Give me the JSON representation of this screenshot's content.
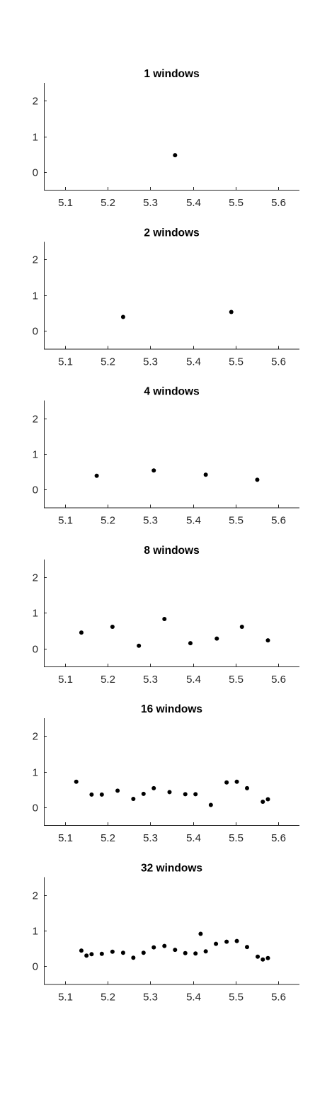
{
  "chart_data": [
    {
      "type": "scatter",
      "title": "1 windows",
      "xlim": [
        5.05,
        5.65
      ],
      "ylim": [
        -0.5,
        2.5
      ],
      "xticks": [
        "5.1",
        "5.2",
        "5.3",
        "5.4",
        "5.5",
        "5.6"
      ],
      "yticks": [
        "0",
        "1",
        "2"
      ],
      "x": [
        5.358
      ],
      "y": [
        0.47
      ]
    },
    {
      "type": "scatter",
      "title": "2 windows",
      "xlim": [
        5.05,
        5.65
      ],
      "ylim": [
        -0.5,
        2.5
      ],
      "xticks": [
        "5.1",
        "5.2",
        "5.3",
        "5.4",
        "5.5",
        "5.6"
      ],
      "yticks": [
        "0",
        "1",
        "2"
      ],
      "x": [
        5.236,
        5.49
      ],
      "y": [
        0.39,
        0.53
      ]
    },
    {
      "type": "scatter",
      "title": "4 windows",
      "xlim": [
        5.05,
        5.65
      ],
      "ylim": [
        -0.5,
        2.5
      ],
      "xticks": [
        "5.1",
        "5.2",
        "5.3",
        "5.4",
        "5.5",
        "5.6"
      ],
      "yticks": [
        "0",
        "1",
        "2"
      ],
      "x": [
        5.174,
        5.308,
        5.43,
        5.551
      ],
      "y": [
        0.39,
        0.54,
        0.42,
        0.28
      ]
    },
    {
      "type": "scatter",
      "title": "8 windows",
      "xlim": [
        5.05,
        5.65
      ],
      "ylim": [
        -0.5,
        2.5
      ],
      "xticks": [
        "5.1",
        "5.2",
        "5.3",
        "5.4",
        "5.5",
        "5.6"
      ],
      "yticks": [
        "0",
        "1",
        "2"
      ],
      "x": [
        5.138,
        5.211,
        5.273,
        5.333,
        5.394,
        5.456,
        5.515,
        5.576
      ],
      "y": [
        0.45,
        0.61,
        0.08,
        0.83,
        0.15,
        0.28,
        0.61,
        0.23
      ]
    },
    {
      "type": "scatter",
      "title": "16 windows",
      "xlim": [
        5.05,
        5.65
      ],
      "ylim": [
        -0.5,
        2.5
      ],
      "xticks": [
        "5.1",
        "5.2",
        "5.3",
        "5.4",
        "5.5",
        "5.6"
      ],
      "yticks": [
        "0",
        "1",
        "2"
      ],
      "x": [
        5.126,
        5.162,
        5.186,
        5.223,
        5.26,
        5.284,
        5.308,
        5.345,
        5.382,
        5.406,
        5.442,
        5.479,
        5.503,
        5.527,
        5.564,
        5.576
      ],
      "y": [
        0.72,
        0.36,
        0.36,
        0.47,
        0.24,
        0.38,
        0.54,
        0.43,
        0.37,
        0.37,
        0.07,
        0.7,
        0.72,
        0.54,
        0.16,
        0.23
      ]
    },
    {
      "type": "scatter",
      "title": "32 windows",
      "xlim": [
        5.05,
        5.65
      ],
      "ylim": [
        -0.5,
        2.5
      ],
      "xticks": [
        "5.1",
        "5.2",
        "5.3",
        "5.4",
        "5.5",
        "5.6"
      ],
      "yticks": [
        "0",
        "1",
        "2"
      ],
      "x": [
        5.138,
        5.15,
        5.162,
        5.186,
        5.211,
        5.236,
        5.26,
        5.284,
        5.308,
        5.333,
        5.358,
        5.382,
        5.406,
        5.418,
        5.43,
        5.454,
        5.479,
        5.503,
        5.527,
        5.552,
        5.564,
        5.576
      ],
      "y": [
        0.44,
        0.3,
        0.34,
        0.35,
        0.41,
        0.38,
        0.24,
        0.38,
        0.53,
        0.57,
        0.46,
        0.37,
        0.36,
        0.91,
        0.42,
        0.63,
        0.69,
        0.71,
        0.54,
        0.27,
        0.19,
        0.23
      ]
    }
  ]
}
